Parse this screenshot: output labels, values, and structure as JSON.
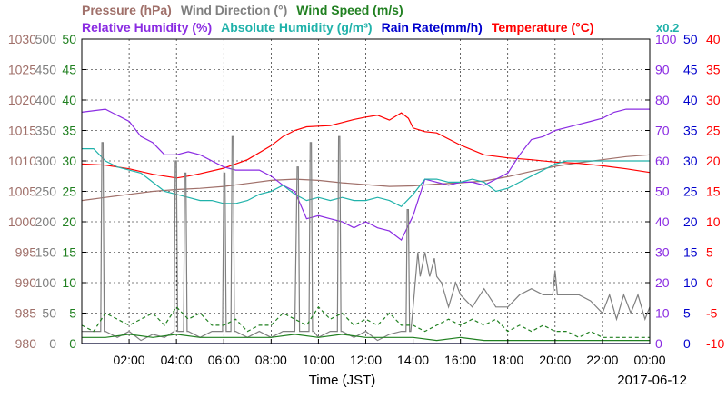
{
  "chart_data": {
    "type": "line",
    "date_label": "2017-06-12",
    "xlabel": "Time (JST)",
    "x_range": [
      0,
      24
    ],
    "x_ticks": [
      "02:00",
      "04:00",
      "06:00",
      "08:00",
      "10:00",
      "12:00",
      "14:00",
      "16:00",
      "18:00",
      "20:00",
      "22:00",
      "00:00"
    ],
    "grid": true,
    "legend_row1": [
      {
        "text": "Pressure (hPa)",
        "color": "#a0706a"
      },
      {
        "text": "Wind Direction (°)",
        "color": "#808080"
      },
      {
        "text": "Wind Speed (m/s)",
        "color": "#208020"
      }
    ],
    "legend_row2": [
      {
        "text": "Relative Humidity (%)",
        "color": "#8a2be2"
      },
      {
        "text": "Absolute Humidity (g/m³)",
        "color": "#20b2aa"
      },
      {
        "text": "Rain Rate(mm/h)",
        "color": "#0000cd"
      },
      {
        "text": "Temperature (°C)",
        "color": "#ff0000"
      }
    ],
    "rain_scale_note": "x0.2",
    "axes": [
      {
        "name": "Pressure",
        "color": "#a0706a",
        "side": "left",
        "range": [
          980,
          1030
        ],
        "ticks": [
          "980",
          "985",
          "990",
          "995",
          "1000",
          "1005",
          "1010",
          "1015",
          "1020",
          "1025",
          "1030"
        ]
      },
      {
        "name": "Wind Direction",
        "color": "#808080",
        "side": "left",
        "range": [
          0,
          500
        ],
        "ticks": [
          "0",
          "50",
          "100",
          "150",
          "200",
          "250",
          "300",
          "350",
          "400",
          "450",
          "500"
        ]
      },
      {
        "name": "Wind Speed",
        "color": "#208020",
        "side": "left",
        "range": [
          0,
          50
        ],
        "ticks": [
          "0",
          "5",
          "10",
          "15",
          "20",
          "25",
          "30",
          "35",
          "40",
          "45",
          "50"
        ]
      },
      {
        "name": "Relative Humidity / Absolute Humidity",
        "color": "#8a2be2",
        "side": "right",
        "range": [
          0,
          100
        ],
        "ticks": [
          "0",
          "10",
          "20",
          "30",
          "40",
          "50",
          "60",
          "70",
          "80",
          "90",
          "100"
        ]
      },
      {
        "name": "Rain Rate",
        "color": "#0000cd",
        "side": "right",
        "range": [
          0,
          50
        ],
        "ticks": [
          "0",
          "5",
          "10",
          "15",
          "20",
          "25",
          "30",
          "35",
          "40",
          "45",
          "50"
        ]
      },
      {
        "name": "Temperature",
        "color": "#ff0000",
        "side": "right",
        "range": [
          -10,
          40
        ],
        "ticks": [
          "-10",
          "-5",
          "0",
          "5",
          "10",
          "15",
          "20",
          "25",
          "30",
          "35",
          "40"
        ]
      }
    ],
    "series": [
      {
        "name": "Pressure (hPa)",
        "color": "#a0706a",
        "axis": 0,
        "style": "solid",
        "x": [
          0,
          1,
          2,
          3,
          4,
          5,
          6,
          7,
          8,
          9,
          10,
          11,
          12,
          13,
          14,
          15,
          16,
          17,
          18,
          19,
          20,
          21,
          22,
          23,
          24
        ],
        "y": [
          1003.5,
          1004.0,
          1004.5,
          1005.0,
          1005.3,
          1005.5,
          1005.8,
          1006.3,
          1006.8,
          1007.0,
          1006.8,
          1006.4,
          1006.1,
          1005.8,
          1005.9,
          1006.2,
          1006.4,
          1006.7,
          1007.4,
          1008.3,
          1009.1,
          1009.7,
          1010.2,
          1010.7,
          1011.0
        ]
      },
      {
        "name": "Temperature (°C)",
        "color": "#ff0000",
        "axis": 5,
        "style": "solid",
        "x": [
          0,
          1,
          1.5,
          2,
          3,
          4,
          4.5,
          5,
          6,
          7,
          8,
          8.5,
          9,
          9.5,
          10,
          10.5,
          11,
          11.5,
          12,
          12.5,
          13,
          13.5,
          13.8,
          14,
          14.5,
          15,
          16,
          17,
          18,
          19,
          20,
          21,
          22,
          23,
          24
        ],
        "y": [
          19.5,
          19.3,
          19.0,
          18.7,
          17.8,
          17.2,
          17.5,
          17.9,
          18.8,
          20.2,
          22.5,
          24.0,
          25.0,
          25.6,
          25.7,
          25.8,
          26.3,
          26.8,
          27.2,
          27.5,
          26.7,
          27.9,
          27.0,
          25.4,
          24.8,
          24.6,
          22.6,
          21.0,
          20.5,
          20.2,
          19.8,
          19.6,
          19.2,
          18.7,
          18.1
        ]
      },
      {
        "name": "Relative Humidity (%)",
        "color": "#8a2be2",
        "axis": 3,
        "style": "solid",
        "x": [
          0,
          1,
          1.5,
          2,
          2.5,
          3,
          3.5,
          4,
          4.5,
          5,
          5.5,
          6,
          6.5,
          7,
          7.5,
          8,
          8.5,
          9,
          9.5,
          10,
          10.5,
          11,
          11.5,
          12,
          12.5,
          13,
          13.5,
          14,
          14.5,
          15,
          15.5,
          16,
          16.5,
          17,
          17.5,
          18,
          18.5,
          19,
          19.5,
          20,
          20.5,
          21,
          21.5,
          22,
          22.5,
          23,
          23.5,
          24
        ],
        "y": [
          76,
          77,
          75,
          73,
          68,
          66,
          62,
          62,
          63,
          62,
          60,
          58,
          57,
          57,
          57,
          55,
          52,
          50,
          41,
          42,
          41,
          40,
          38,
          40,
          38,
          37,
          34,
          42,
          54,
          53,
          52,
          53,
          53,
          52,
          54,
          56,
          62,
          67,
          68,
          70,
          71,
          72,
          73,
          74,
          76,
          77,
          77,
          77
        ]
      },
      {
        "name": "Absolute Humidity (g/m³)",
        "color": "#20b2aa",
        "axis": 3,
        "style": "solid",
        "x": [
          0,
          0.5,
          1,
          1.5,
          2,
          2.5,
          3,
          3.5,
          4,
          4.5,
          5,
          5.5,
          6,
          6.5,
          7,
          7.5,
          8,
          8.5,
          9,
          9.5,
          10,
          10.5,
          11,
          11.5,
          12,
          12.5,
          13,
          13.5,
          14,
          14.5,
          15,
          15.5,
          16,
          16.5,
          17,
          17.5,
          18,
          18.5,
          19,
          19.5,
          20,
          20.5,
          21,
          21.5,
          22,
          22.5,
          23,
          23.5,
          24
        ],
        "y": [
          64,
          64,
          60,
          58,
          57,
          56,
          53,
          50,
          49,
          48,
          47,
          47,
          46,
          46,
          47,
          49,
          50,
          52,
          49,
          47,
          48,
          47,
          48,
          47,
          47,
          48,
          47,
          45,
          49,
          54,
          54,
          53,
          53,
          54,
          53,
          50,
          51,
          53,
          55,
          57,
          59,
          60,
          60,
          60,
          60,
          60,
          60,
          60,
          60
        ]
      },
      {
        "name": "Wind Direction (°)",
        "color": "#808080",
        "axis": 1,
        "style": "solid",
        "x": [
          0,
          0.8,
          0.85,
          0.9,
          0.95,
          1.0,
          1.5,
          2.0,
          2.5,
          3.0,
          3.5,
          3.9,
          3.95,
          4.0,
          4.05,
          4.1,
          4.3,
          4.35,
          4.4,
          4.45,
          4.5,
          5.0,
          5.5,
          5.95,
          6.0,
          6.05,
          6.1,
          6.2,
          6.3,
          6.35,
          6.4,
          6.45,
          6.5,
          7.0,
          7.5,
          8.0,
          8.5,
          9.0,
          9.1,
          9.15,
          9.2,
          9.25,
          9.3,
          9.6,
          9.65,
          9.7,
          9.75,
          9.8,
          10.0,
          10.5,
          10.8,
          10.85,
          10.9,
          10.95,
          11.0,
          11.5,
          12.0,
          12.5,
          13.0,
          13.5,
          13.7,
          13.75,
          13.8,
          13.85,
          13.9,
          14.0,
          14.2,
          14.3,
          14.5,
          14.7,
          14.9,
          15.0,
          15.2,
          15.5,
          15.8,
          16.0,
          16.5,
          17.0,
          17.5,
          18.0,
          18.5,
          19.0,
          19.5,
          19.9,
          20.0,
          20.1,
          20.5,
          21.0,
          21.5,
          22.0,
          22.3,
          22.6,
          22.9,
          23.2,
          23.5,
          23.8,
          24
        ],
        "y": [
          20,
          20,
          330,
          330,
          20,
          20,
          10,
          20,
          5,
          15,
          10,
          20,
          300,
          300,
          20,
          20,
          20,
          280,
          280,
          20,
          20,
          10,
          20,
          20,
          280,
          280,
          20,
          20,
          20,
          340,
          340,
          20,
          20,
          10,
          20,
          10,
          20,
          20,
          290,
          290,
          20,
          20,
          20,
          20,
          330,
          330,
          20,
          20,
          10,
          20,
          20,
          340,
          340,
          20,
          20,
          10,
          20,
          5,
          15,
          20,
          20,
          220,
          220,
          20,
          20,
          60,
          150,
          110,
          150,
          110,
          140,
          110,
          100,
          60,
          100,
          80,
          60,
          90,
          60,
          60,
          80,
          90,
          80,
          80,
          120,
          80,
          80,
          80,
          70,
          50,
          80,
          40,
          80,
          50,
          80,
          40,
          60
        ]
      },
      {
        "name": "Wind Speed (m/s)",
        "color": "#208020",
        "axis": 2,
        "style": "dashed",
        "x": [
          0,
          0.5,
          1,
          1.5,
          2,
          2.5,
          3,
          3.5,
          4,
          4.5,
          5,
          5.5,
          6,
          6.5,
          7,
          7.5,
          8,
          8.5,
          9,
          9.5,
          10,
          10.5,
          11,
          11.5,
          12,
          12.5,
          13,
          13.5,
          14,
          14.5,
          15,
          15.5,
          16,
          16.5,
          17,
          17.5,
          18,
          18.5,
          19,
          19.5,
          20,
          20.5,
          21,
          21.5,
          22,
          22.5,
          23,
          23.5,
          24
        ],
        "y": [
          3,
          2,
          5,
          4,
          3,
          4,
          5,
          3,
          6,
          4,
          5,
          3,
          3,
          4,
          2,
          3,
          3,
          5,
          4,
          3,
          6,
          4,
          5,
          3,
          4,
          3,
          5,
          3,
          3,
          2,
          3,
          4,
          3,
          4,
          3,
          4,
          2,
          3,
          2,
          3,
          2,
          2,
          1,
          2,
          1,
          1,
          1,
          1,
          1
        ]
      },
      {
        "name": "Wind Speed (m/s) min",
        "color": "#208020",
        "axis": 2,
        "style": "solid",
        "x": [
          0,
          1,
          2,
          3,
          4,
          5,
          6,
          7,
          8,
          9,
          10,
          11,
          12,
          13,
          14,
          15,
          16,
          17,
          18,
          19,
          20,
          21,
          22,
          23,
          24
        ],
        "y": [
          1,
          1,
          1.5,
          1,
          1.5,
          1,
          1,
          1,
          1,
          1.5,
          1,
          1.5,
          1,
          1,
          1,
          0.5,
          1,
          0.5,
          0.5,
          0.5,
          0.5,
          0.5,
          0.5,
          0.5,
          0.5
        ]
      },
      {
        "name": "Rain Rate(mm/h)",
        "color": "#0000cd",
        "axis": 4,
        "style": "solid",
        "x": [
          0,
          24
        ],
        "y": [
          0,
          0
        ]
      }
    ]
  }
}
